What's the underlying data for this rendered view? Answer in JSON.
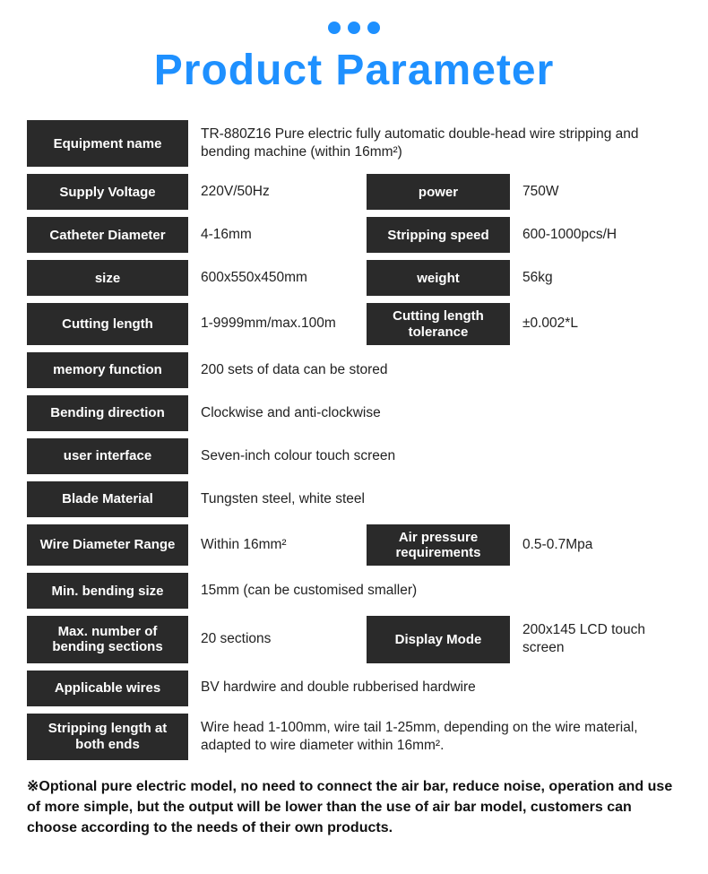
{
  "heading": "Product Parameter",
  "colors": {
    "accent": "#1e90ff",
    "label_bg": "#2a2a2a",
    "label_fg": "#ffffff",
    "value_fg": "#222222",
    "page_bg": "#ffffff"
  },
  "rows": [
    {
      "type": "single",
      "label": "Equipment name",
      "value": "TR-880Z16 Pure electric fully automatic double-head wire stripping and bending machine (within 16mm²)"
    },
    {
      "type": "double",
      "label1": "Supply Voltage",
      "value1": "220V/50Hz",
      "label2": "power",
      "value2": "750W"
    },
    {
      "type": "double",
      "label1": "Catheter Diameter",
      "value1": "4-16mm",
      "label2": "Stripping speed",
      "value2": "600-1000pcs/H"
    },
    {
      "type": "double",
      "label1": "size",
      "value1": "600x550x450mm",
      "label2": "weight",
      "value2": "56kg"
    },
    {
      "type": "double",
      "label1": "Cutting length",
      "value1": "1-9999mm/max.100m",
      "label2": "Cutting length tolerance",
      "value2": "±0.002*L"
    },
    {
      "type": "single",
      "label": "memory function",
      "value": "200 sets of data can be stored"
    },
    {
      "type": "single",
      "label": "Bending direction",
      "value": "Clockwise and anti-clockwise"
    },
    {
      "type": "single",
      "label": "user interface",
      "value": "Seven-inch colour touch screen"
    },
    {
      "type": "single",
      "label": "Blade Material",
      "value": "Tungsten steel, white steel"
    },
    {
      "type": "double",
      "label1": "Wire Diameter Range",
      "value1": "Within 16mm²",
      "label2": "Air pressure requirements",
      "value2": "0.5-0.7Mpa"
    },
    {
      "type": "single",
      "label": "Min. bending size",
      "value": "15mm (can be customised smaller)"
    },
    {
      "type": "double",
      "label1": "Max. number of bending sections",
      "value1": "20 sections",
      "label2": "Display Mode",
      "value2": "200x145 LCD touch screen"
    },
    {
      "type": "single",
      "label": "Applicable wires",
      "value": "BV hardwire and double rubberised hardwire"
    },
    {
      "type": "single",
      "label": "Stripping length at both ends",
      "value": "Wire head 1-100mm, wire tail 1-25mm, depending on the wire material, adapted to wire diameter within 16mm²."
    }
  ],
  "footnote": "※Optional pure electric model, no need to connect the air bar, reduce noise, operation and use of more simple, but the output will be lower than the use of air bar model, customers can choose according to the needs of their own products."
}
